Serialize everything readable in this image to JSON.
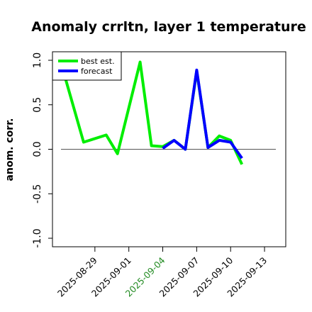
{
  "chart_data": {
    "type": "line",
    "title": "Anomaly crrltn, layer 1 temperature",
    "ylabel": "anom. corr.",
    "xlabel": "",
    "ylim": [
      -1.0,
      1.0
    ],
    "yticks": [
      "-1.0",
      "-0.5",
      "0.0",
      "0.5",
      "1.0"
    ],
    "x_range": [
      "2025-08-26",
      "2025-09-14"
    ],
    "xticks": [
      {
        "label": "2025-08-29",
        "date": "2025-08-29",
        "color": "#000000"
      },
      {
        "label": "2025-09-01",
        "date": "2025-09-01",
        "color": "#000000"
      },
      {
        "label": "2025-09-04",
        "date": "2025-09-04",
        "color": "#228B22"
      },
      {
        "label": "2025-09-07",
        "date": "2025-09-07",
        "color": "#000000"
      },
      {
        "label": "2025-09-10",
        "date": "2025-09-10",
        "color": "#000000"
      },
      {
        "label": "2025-09-13",
        "date": "2025-09-13",
        "color": "#000000"
      }
    ],
    "reference_line": 0,
    "legend": {
      "placement": "top-left",
      "box": true
    },
    "series": [
      {
        "name": "best est.",
        "color": "#00ee00",
        "x": [
          "2025-08-26",
          "2025-08-28",
          "2025-08-30",
          "2025-08-31",
          "2025-09-02",
          "2025-09-03",
          "2025-09-04",
          "2025-09-05",
          "2025-09-06",
          "2025-09-07",
          "2025-09-08",
          "2025-09-09",
          "2025-09-10",
          "2025-09-11"
        ],
        "values": [
          0.97,
          0.08,
          0.16,
          -0.05,
          0.98,
          0.04,
          0.03,
          0.1,
          0.0,
          0.88,
          0.02,
          0.15,
          0.1,
          -0.17
        ]
      },
      {
        "name": "forecast",
        "color": "#0000ff",
        "x": [
          "2025-09-04",
          "2025-09-05",
          "2025-09-06",
          "2025-09-07",
          "2025-09-08",
          "2025-09-09",
          "2025-09-10",
          "2025-09-11"
        ],
        "values": [
          0.01,
          0.1,
          0.0,
          0.89,
          0.02,
          0.1,
          0.08,
          -0.1
        ]
      }
    ]
  }
}
